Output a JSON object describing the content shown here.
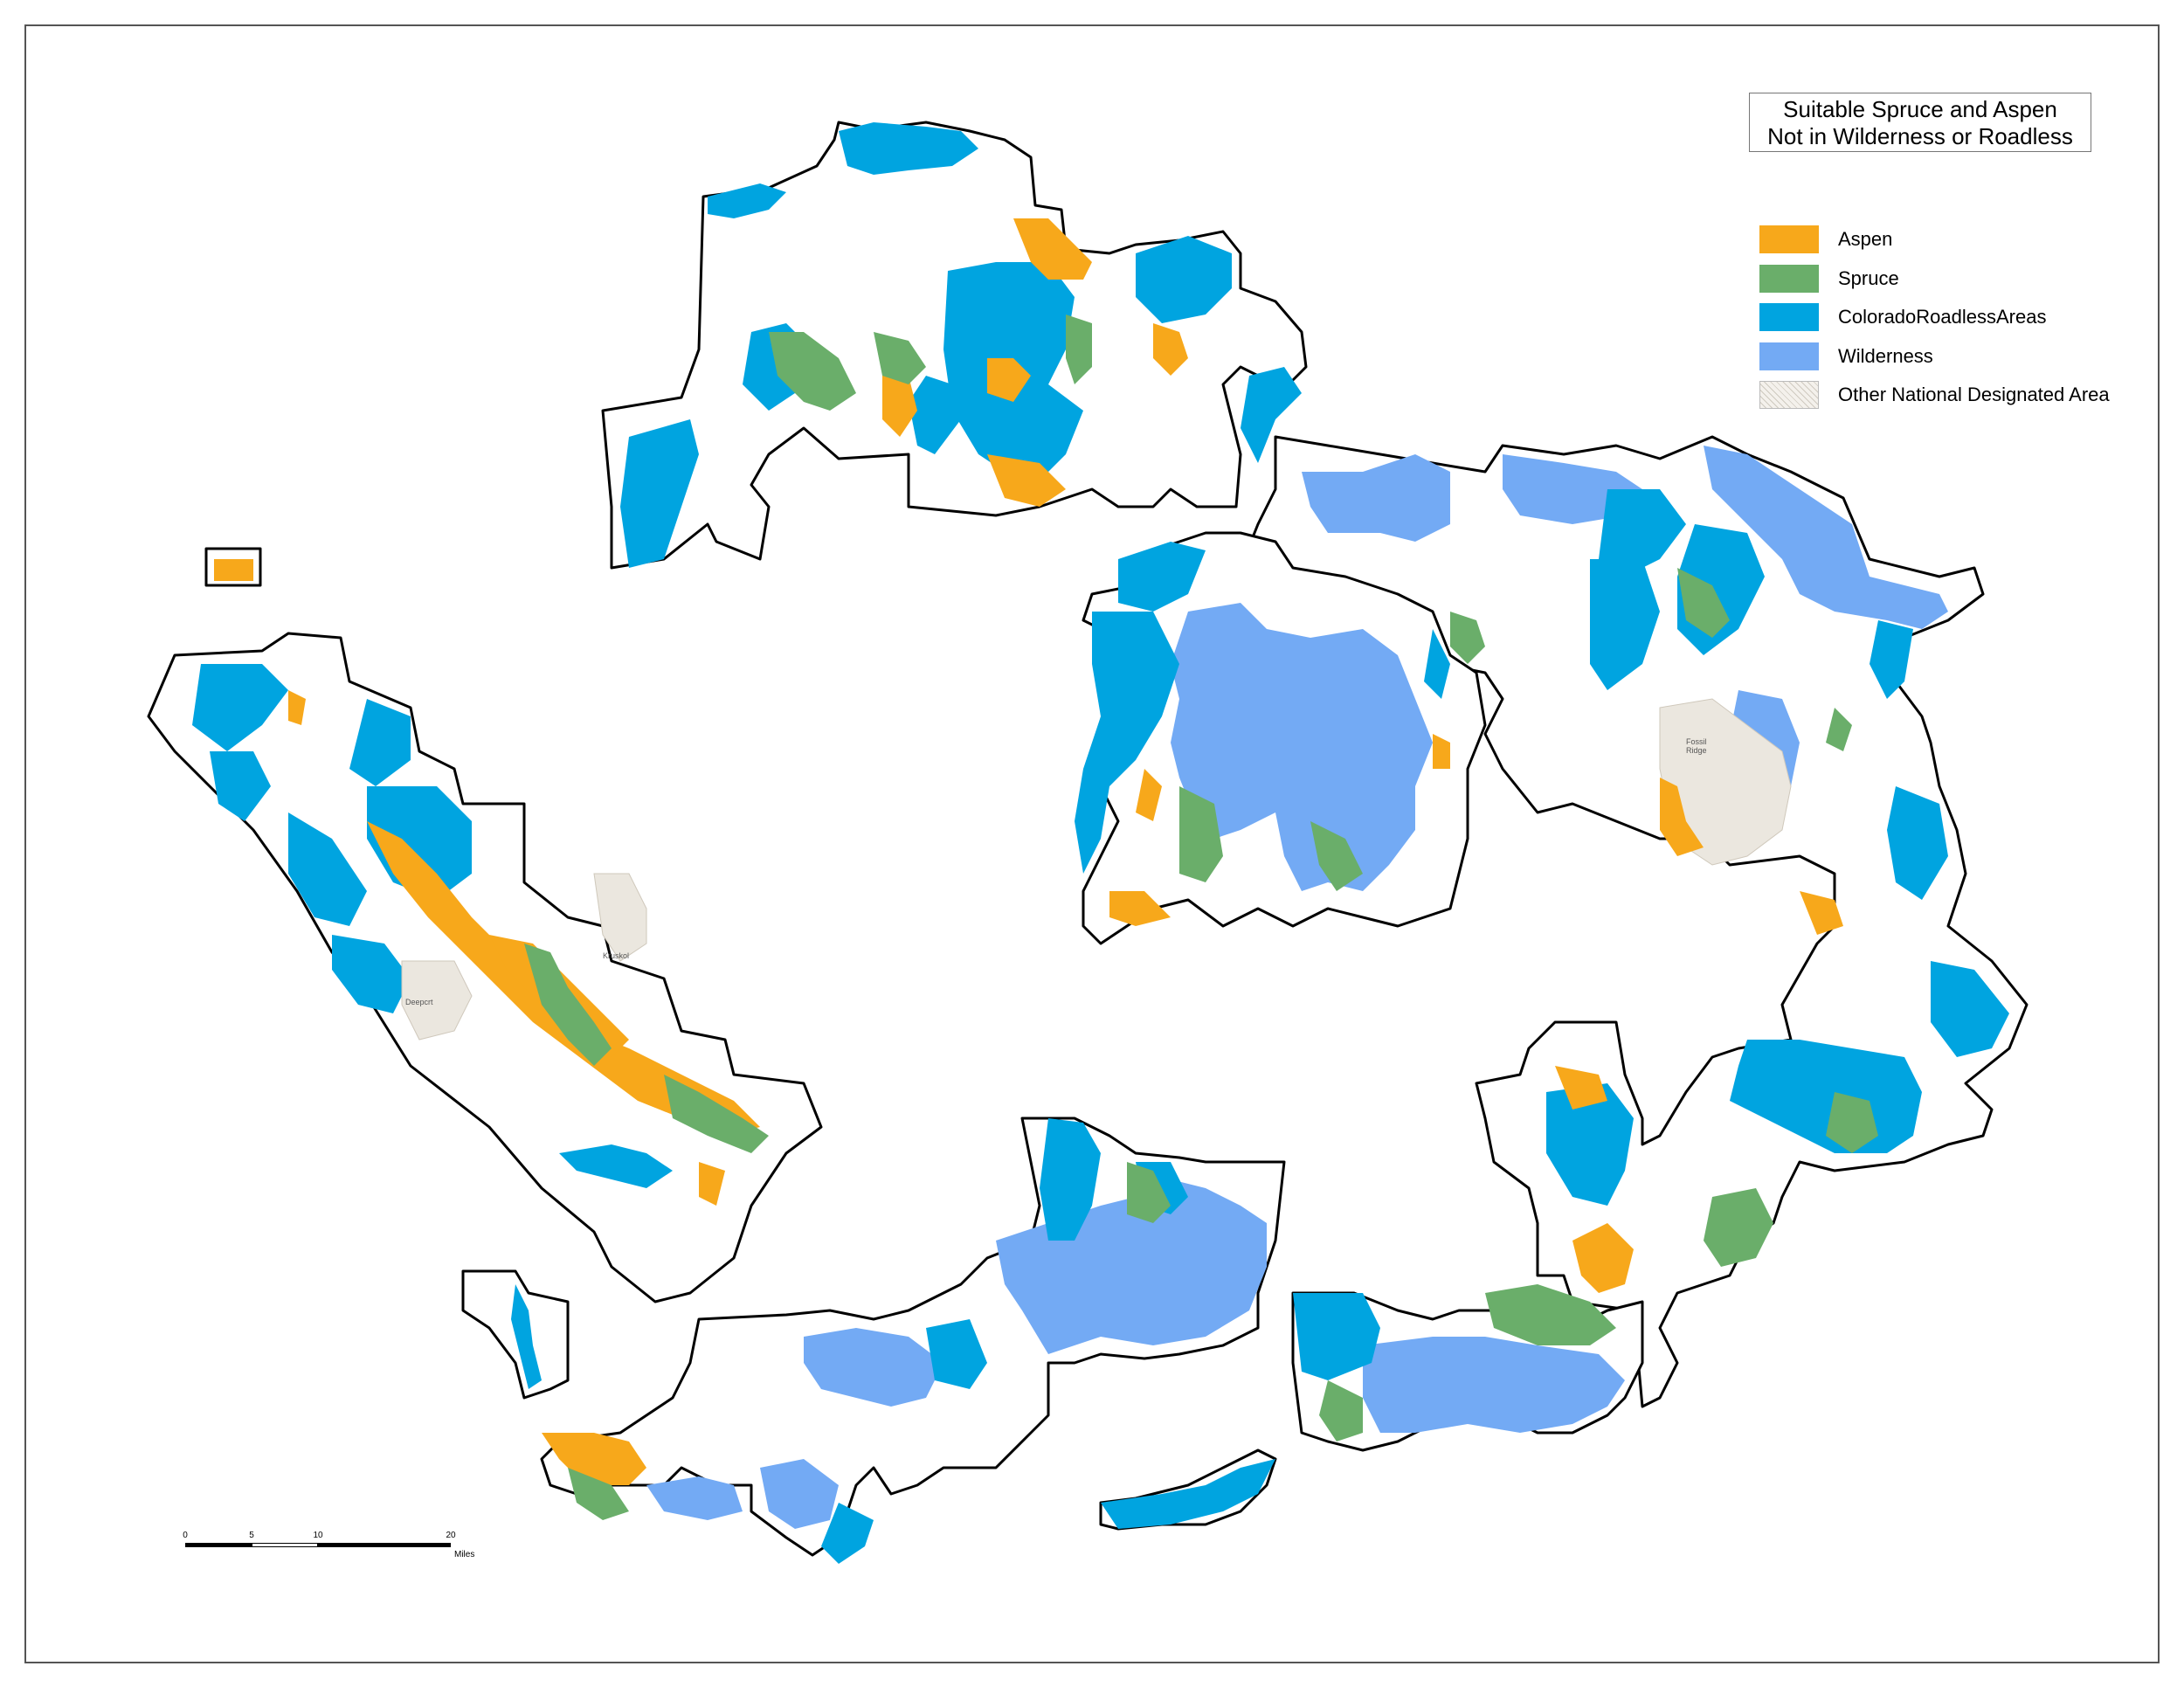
{
  "map": {
    "title_line1": "Suitable Spruce and Aspen",
    "title_line2": "Not in Wilderness or Roadless",
    "colors": {
      "aspen": "#f7a81b",
      "spruce": "#6aae6a",
      "roadless": "#00a4e0",
      "wilderness": "#73aaf4",
      "other_designated": "#e8e4dc",
      "boundary": "#000000"
    },
    "legend": [
      {
        "label": "Aspen",
        "color": "#f7a81b",
        "style": "solid"
      },
      {
        "label": "Spruce",
        "color": "#6aae6a",
        "style": "solid"
      },
      {
        "label": "ColoradoRoadlessAreas",
        "color": "#00a4e0",
        "style": "solid"
      },
      {
        "label": "Wilderness",
        "color": "#73aaf4",
        "style": "solid"
      },
      {
        "label": "Other National Designated Area",
        "color": "#e8e4dc",
        "style": "hatch"
      }
    ],
    "scale": {
      "ticks": [
        "0",
        "5",
        "10",
        "20"
      ],
      "unit": "Miles"
    }
  }
}
